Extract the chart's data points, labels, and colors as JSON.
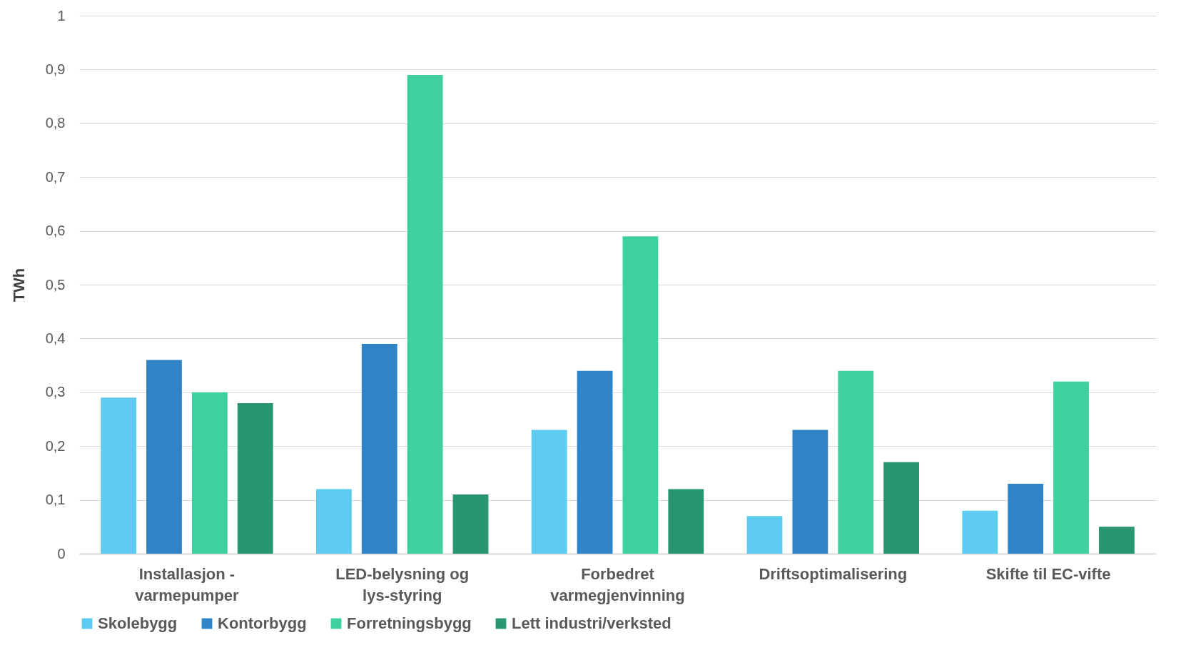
{
  "chart_data": {
    "type": "bar",
    "ylabel": "TWh",
    "categories": [
      "Installasjon - varmepumper",
      "LED-belysning og lys-styring",
      "Forbedret varmegjenvinning",
      "Driftsoptimalisering",
      "Skifte til EC-vifte"
    ],
    "series": [
      {
        "name": "Skolebygg",
        "color": "#5ecbf0",
        "values": [
          0.29,
          0.12,
          0.23,
          0.07,
          0.08
        ]
      },
      {
        "name": "Kontorbygg",
        "color": "#2e84c6",
        "values": [
          0.36,
          0.39,
          0.34,
          0.23,
          0.13
        ]
      },
      {
        "name": "Forretningsbygg",
        "color": "#40cfa0",
        "values": [
          0.3,
          0.89,
          0.59,
          0.34,
          0.32
        ]
      },
      {
        "name": "Lett industri/verksted",
        "color": "#2a9670",
        "values": [
          0.28,
          0.11,
          0.12,
          0.17,
          0.05
        ]
      }
    ],
    "ylim": [
      0,
      1
    ],
    "yticks": [
      0,
      {
        "value": 0.1,
        "label": "0,1"
      },
      {
        "value": 0.2,
        "label": "0,2"
      },
      {
        "value": 0.3,
        "label": "0,3"
      },
      {
        "value": 0.4,
        "label": "0,4"
      },
      {
        "value": 0.5,
        "label": "0,5"
      },
      {
        "value": 0.6,
        "label": "0,6"
      },
      {
        "value": 0.7,
        "label": "0,7"
      },
      {
        "value": 0.8,
        "label": "0,8"
      },
      {
        "value": 0.9,
        "label": "0,9"
      },
      1
    ],
    "grid": "y",
    "legend": "bottom"
  }
}
